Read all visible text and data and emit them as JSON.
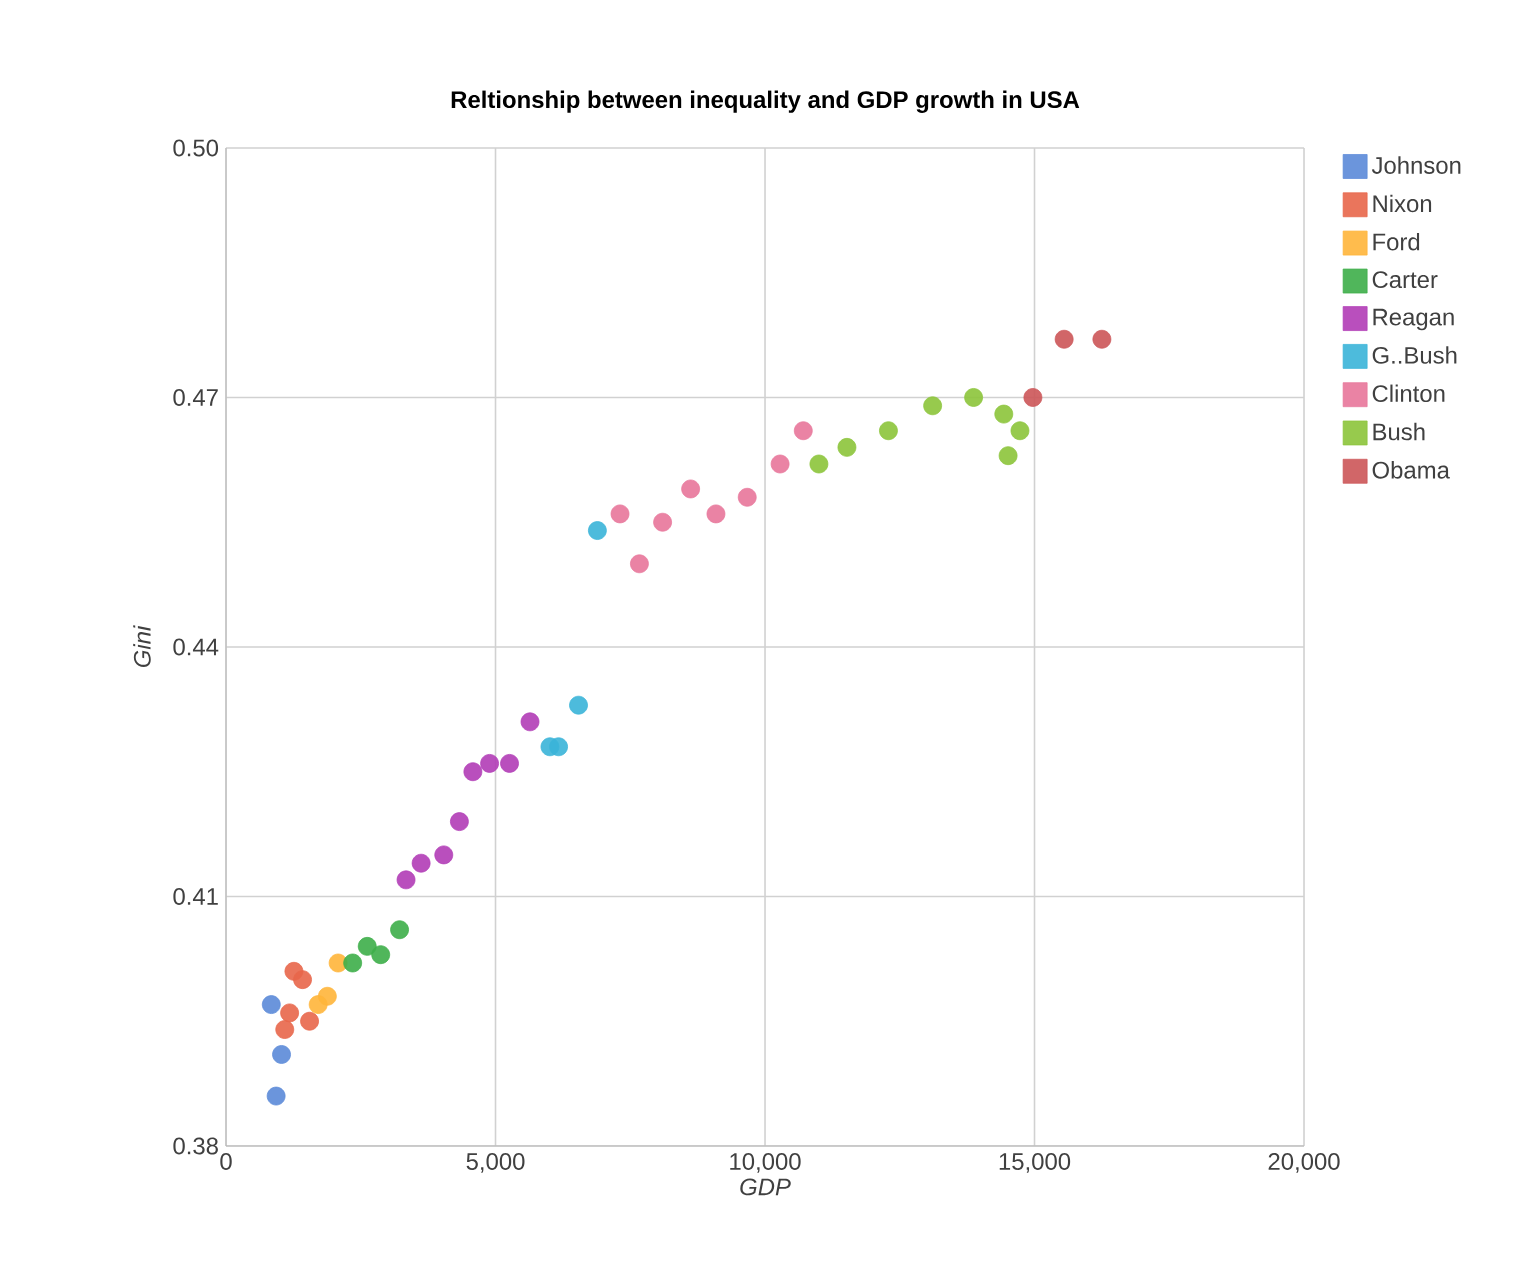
{
  "chart_data": {
    "type": "scatter",
    "title": "Reltionship between inequality and GDP growth in USA",
    "xlabel": "GDP",
    "ylabel": "Gini",
    "xlim": [
      0,
      20000
    ],
    "ylim": [
      0.38,
      0.5
    ],
    "xticks": [
      0,
      {
        "value": 5000,
        "label": "5,000"
      },
      {
        "value": 10000,
        "label": "10,000"
      },
      {
        "value": 15000,
        "label": "15,000"
      },
      {
        "value": 20000,
        "label": "20,000"
      }
    ],
    "yticks": [
      0.38,
      0.41,
      0.44,
      0.47,
      {
        "value": 0.5,
        "label": "0.50"
      }
    ],
    "grid": true,
    "legend": "right",
    "marker": "circle",
    "series": [
      {
        "name": "Johnson",
        "color": "#5b8ad8",
        "x": [
          840,
          1030,
          930
        ],
        "values": [
          0.397,
          0.391,
          0.386
        ]
      },
      {
        "name": "Nixon",
        "color": "#e8664a",
        "x": [
          1260,
          1420,
          1180,
          1090,
          1550
        ],
        "values": [
          0.401,
          0.4,
          0.396,
          0.394,
          0.395
        ]
      },
      {
        "name": "Ford",
        "color": "#ffb53a",
        "x": [
          2080,
          1880,
          1710
        ],
        "values": [
          0.402,
          0.398,
          0.397
        ]
      },
      {
        "name": "Carter",
        "color": "#3dae49",
        "x": [
          2350,
          2620,
          2870,
          3220
        ],
        "values": [
          0.402,
          0.404,
          0.403,
          0.406
        ]
      },
      {
        "name": "Reagan",
        "color": "#b13cb6",
        "x": [
          3340,
          3620,
          4040,
          4330,
          4580,
          4890,
          5260,
          5640
        ],
        "values": [
          0.412,
          0.414,
          0.415,
          0.419,
          0.425,
          0.426,
          0.426,
          0.431
        ]
      },
      {
        "name": "G..Bush",
        "color": "#3ab4d8",
        "x": [
          6010,
          6170,
          6540,
          6890
        ],
        "values": [
          0.428,
          0.428,
          0.433,
          0.454
        ]
      },
      {
        "name": "Clinton",
        "color": "#e8769a",
        "x": [
          7310,
          7670,
          8100,
          8620,
          9090,
          9670,
          10280,
          10710
        ],
        "values": [
          0.456,
          0.45,
          0.455,
          0.459,
          0.456,
          0.458,
          0.462,
          0.466
        ]
      },
      {
        "name": "Bush",
        "color": "#8cc43a",
        "x": [
          11000,
          11520,
          12290,
          13110,
          13870,
          14430,
          14730,
          14510
        ],
        "values": [
          0.462,
          0.464,
          0.466,
          0.469,
          0.47,
          0.468,
          0.466,
          0.463
        ]
      },
      {
        "name": "Obama",
        "color": "#cc5558",
        "x": [
          14970,
          15550,
          16250
        ],
        "values": [
          0.47,
          0.477,
          0.477
        ]
      }
    ]
  }
}
